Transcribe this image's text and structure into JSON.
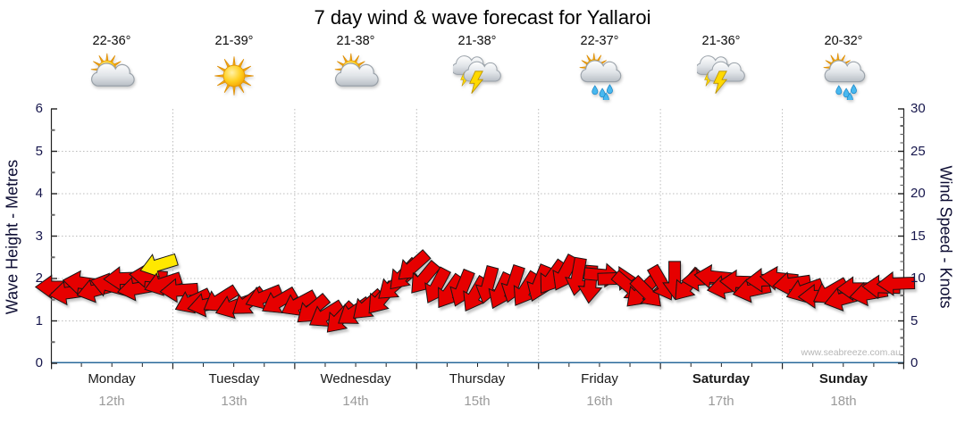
{
  "title": "7 day wind & wave forecast for Yallaroi",
  "watermark": "www.seabreeze.com.au",
  "forecast": {
    "days": [
      {
        "name": "Monday",
        "date": "12th",
        "temp": "22-36°",
        "icon": "sun-cloud",
        "weekend": false
      },
      {
        "name": "Tuesday",
        "date": "13th",
        "temp": "21-39°",
        "icon": "sunny",
        "weekend": false
      },
      {
        "name": "Wednesday",
        "date": "14th",
        "temp": "21-38°",
        "icon": "sun-cloud",
        "weekend": false
      },
      {
        "name": "Thursday",
        "date": "15th",
        "temp": "21-38°",
        "icon": "thunderstorm",
        "weekend": false
      },
      {
        "name": "Friday",
        "date": "16th",
        "temp": "22-37°",
        "icon": "sun-cloud-rain",
        "weekend": false
      },
      {
        "name": "Saturday",
        "date": "17th",
        "temp": "21-36°",
        "icon": "thunderstorm",
        "weekend": true
      },
      {
        "name": "Sunday",
        "date": "18th",
        "temp": "20-32°",
        "icon": "sun-cloud-rain",
        "weekend": true
      }
    ]
  },
  "chart_data": {
    "type": "scatter",
    "title": "7 day wind & wave forecast for Yallaroi",
    "x_categories": [
      "Monday 12th",
      "Tuesday 13th",
      "Wednesday 14th",
      "Thursday 15th",
      "Friday 16th",
      "Saturday 17th",
      "Sunday 18th"
    ],
    "left_axis": {
      "label": "Wave Height - Metres",
      "range": [
        0,
        6
      ],
      "ticks": [
        0,
        1,
        2,
        3,
        4,
        5,
        6
      ]
    },
    "right_axis": {
      "label": "Wind Speed - Knots",
      "range": [
        0,
        30
      ],
      "ticks": [
        0,
        5,
        10,
        15,
        20,
        25,
        30
      ]
    },
    "grid": true,
    "legend_position": "none",
    "colors": {
      "arrow": "#e60000",
      "arrow_highlight": "#ffe800",
      "baseline": "#2a6a9b",
      "grid": "#bcbcbc",
      "axis": "#222222"
    },
    "arrows": [
      {
        "t": 0.004,
        "kn": 9.0,
        "dir": 180
      },
      {
        "t": 0.02,
        "kn": 8.3,
        "dir": 172
      },
      {
        "t": 0.036,
        "kn": 9.5,
        "dir": 188
      },
      {
        "t": 0.052,
        "kn": 8.6,
        "dir": 165
      },
      {
        "t": 0.068,
        "kn": 9.2,
        "dir": 195
      },
      {
        "t": 0.084,
        "kn": 10.0,
        "dir": 178
      },
      {
        "t": 0.1,
        "kn": 8.8,
        "dir": 170
      },
      {
        "t": 0.114,
        "kn": 10.3,
        "dir": 185
      },
      {
        "t": 0.126,
        "kn": 11.6,
        "dir": 163,
        "hl": true
      },
      {
        "t": 0.131,
        "kn": 9.4,
        "dir": 162
      },
      {
        "t": 0.15,
        "kn": 8.6,
        "dir": 176
      },
      {
        "t": 0.166,
        "kn": 7.3,
        "dir": 155
      },
      {
        "t": 0.182,
        "kn": 6.9,
        "dir": 168
      },
      {
        "t": 0.198,
        "kn": 7.5,
        "dir": 148
      },
      {
        "t": 0.214,
        "kn": 6.7,
        "dir": 160
      },
      {
        "t": 0.231,
        "kn": 7.2,
        "dir": 143
      },
      {
        "t": 0.249,
        "kn": 7.8,
        "dir": 158
      },
      {
        "t": 0.267,
        "kn": 7.3,
        "dir": 150
      },
      {
        "t": 0.29,
        "kn": 7.0,
        "dir": 152
      },
      {
        "t": 0.306,
        "kn": 6.3,
        "dir": 140
      },
      {
        "t": 0.322,
        "kn": 5.7,
        "dir": 148
      },
      {
        "t": 0.339,
        "kn": 5.3,
        "dir": 133
      },
      {
        "t": 0.355,
        "kn": 6.0,
        "dir": 145
      },
      {
        "t": 0.371,
        "kn": 6.8,
        "dir": 138
      },
      {
        "t": 0.387,
        "kn": 7.6,
        "dir": 130
      },
      {
        "t": 0.401,
        "kn": 9.1,
        "dir": 140
      },
      {
        "t": 0.413,
        "kn": 10.4,
        "dir": 133
      },
      {
        "t": 0.424,
        "kn": 11.4,
        "dir": 138
      },
      {
        "t": 0.437,
        "kn": 10.0,
        "dir": 130
      },
      {
        "t": 0.452,
        "kn": 9.1,
        "dir": 118
      },
      {
        "t": 0.467,
        "kn": 8.4,
        "dir": 125
      },
      {
        "t": 0.482,
        "kn": 8.8,
        "dir": 112
      },
      {
        "t": 0.497,
        "kn": 8.1,
        "dir": 120
      },
      {
        "t": 0.512,
        "kn": 9.2,
        "dir": 105
      },
      {
        "t": 0.527,
        "kn": 8.5,
        "dir": 115
      },
      {
        "t": 0.542,
        "kn": 9.3,
        "dir": 108
      },
      {
        "t": 0.556,
        "kn": 8.7,
        "dir": 122
      },
      {
        "t": 0.572,
        "kn": 9.4,
        "dir": 112
      },
      {
        "t": 0.587,
        "kn": 10.1,
        "dir": 125
      },
      {
        "t": 0.602,
        "kn": 10.6,
        "dir": 118
      },
      {
        "t": 0.617,
        "kn": 10.2,
        "dir": 100
      },
      {
        "t": 0.632,
        "kn": 9.3,
        "dir": 95
      },
      {
        "t": 0.647,
        "kn": 10.4,
        "dir": 5
      },
      {
        "t": 0.663,
        "kn": 10.0,
        "dir": 358
      },
      {
        "t": 0.678,
        "kn": 9.0,
        "dir": 40
      },
      {
        "t": 0.691,
        "kn": 8.3,
        "dir": 135
      },
      {
        "t": 0.699,
        "kn": 8.3,
        "dir": 45
      },
      {
        "t": 0.716,
        "kn": 9.4,
        "dir": 60
      },
      {
        "t": 0.731,
        "kn": 9.8,
        "dir": 90
      },
      {
        "t": 0.746,
        "kn": 9.2,
        "dir": 130
      },
      {
        "t": 0.761,
        "kn": 9.9,
        "dir": 175
      },
      {
        "t": 0.776,
        "kn": 10.2,
        "dir": 186
      },
      {
        "t": 0.791,
        "kn": 9.0,
        "dir": 170
      },
      {
        "t": 0.806,
        "kn": 9.6,
        "dir": 182
      },
      {
        "t": 0.821,
        "kn": 8.6,
        "dir": 168
      },
      {
        "t": 0.836,
        "kn": 9.8,
        "dir": 178
      },
      {
        "t": 0.853,
        "kn": 10.0,
        "dir": 186
      },
      {
        "t": 0.868,
        "kn": 9.4,
        "dir": 172
      },
      {
        "t": 0.883,
        "kn": 8.6,
        "dir": 160
      },
      {
        "t": 0.898,
        "kn": 7.9,
        "dir": 178
      },
      {
        "t": 0.913,
        "kn": 8.4,
        "dir": 150
      },
      {
        "t": 0.928,
        "kn": 7.6,
        "dir": 165
      },
      {
        "t": 0.943,
        "kn": 8.8,
        "dir": 180
      },
      {
        "t": 0.958,
        "kn": 8.2,
        "dir": 170
      },
      {
        "t": 0.973,
        "kn": 9.0,
        "dir": 182
      },
      {
        "t": 0.99,
        "kn": 9.4,
        "dir": 178
      }
    ]
  }
}
